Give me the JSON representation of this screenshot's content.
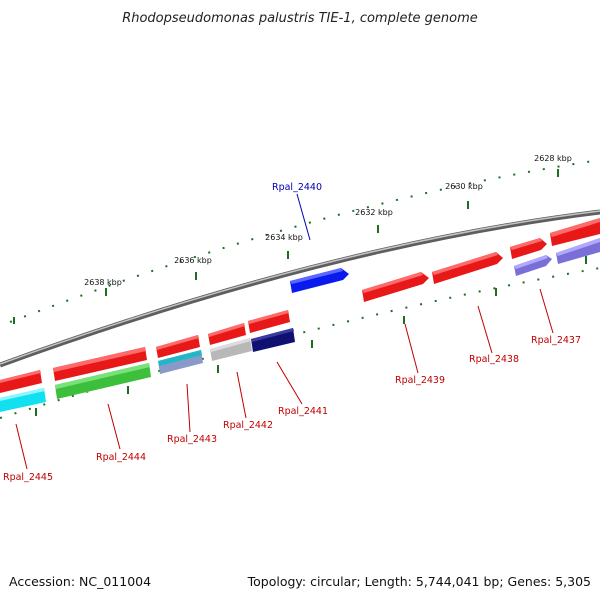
{
  "title": "Rhodopseudomonas palustris TIE-1, complete genome",
  "footer": {
    "accession": "Accession: NC_011004",
    "topology": "Topology: circular; Length: 5,744,041 bp; Genes: 5,305"
  },
  "scale_labels": [
    "2638 kbp",
    "2636 kbp",
    "2634 kbp",
    "2632 kbp",
    "2630 kbp",
    "2628 kbp"
  ],
  "colors": {
    "backbone": "#8a8a8a",
    "tick": "#1f6e1f",
    "label_red": "#c00000",
    "label_blue": "#0000b0",
    "red_gene": "#e81818",
    "blue_gene": "#0a1aee",
    "cyan_gene": "#10e0f0",
    "green_gene": "#3cc03c",
    "teal_gene": "#20b8c8",
    "grey_gene": "#b8b8b8",
    "navy_gene": "#101070",
    "lavender_gene": "#7a6ed8"
  },
  "genes": [
    {
      "label": "Rpal_2440",
      "color": "blue"
    },
    {
      "label": "Rpal_2439",
      "color": "red"
    },
    {
      "label": "Rpal_2438",
      "color": "red"
    },
    {
      "label": "Rpal_2437",
      "color": "red"
    },
    {
      "label": "Rpal_2441",
      "color": "red"
    },
    {
      "label": "Rpal_2442",
      "color": "red"
    },
    {
      "label": "Rpal_2443",
      "color": "red"
    },
    {
      "label": "Rpal_2444",
      "color": "red"
    },
    {
      "label": "Rpal_2445",
      "color": "red"
    }
  ]
}
